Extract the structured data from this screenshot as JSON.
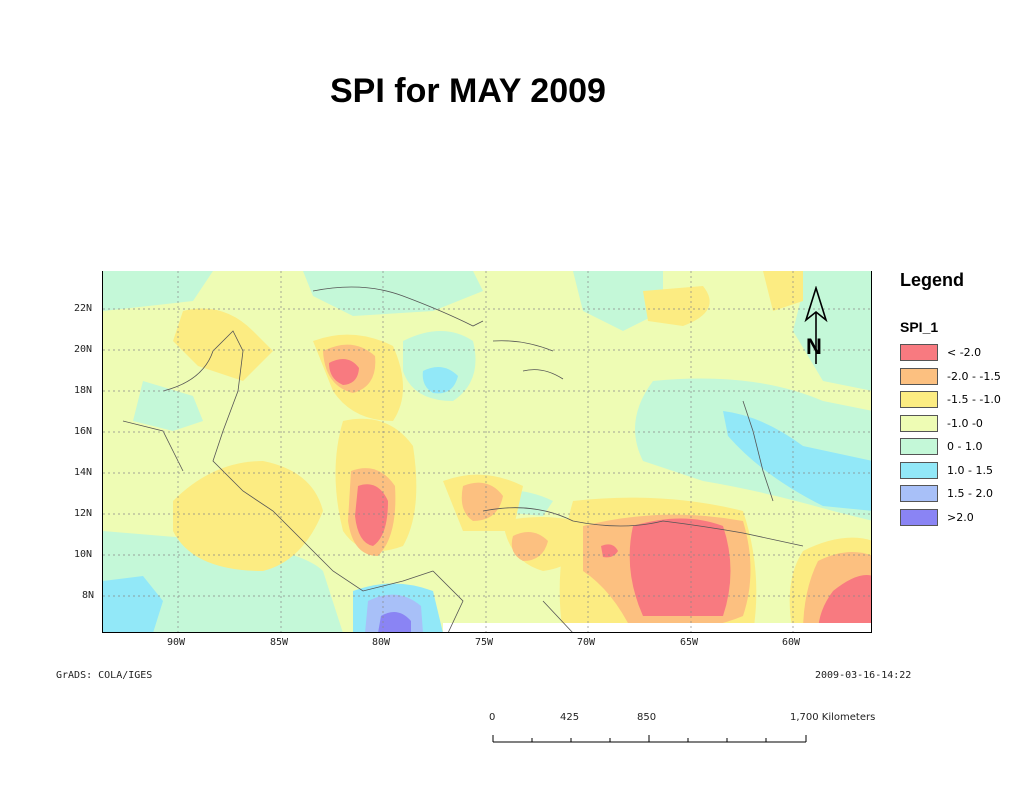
{
  "title": "SPI for MAY 2009",
  "map": {
    "lat_labels": [
      "22N",
      "20N",
      "18N",
      "16N",
      "14N",
      "12N",
      "10N",
      "8N"
    ],
    "lon_labels": [
      "90W",
      "85W",
      "80W",
      "75W",
      "70W",
      "65W",
      "60W"
    ],
    "credit": "GrADS: COLA/IGES",
    "timestamp": "2009-03-16-14:22",
    "north_arrow": "N"
  },
  "legend": {
    "title": "Legend",
    "field": "SPI_1",
    "items": [
      {
        "label": "< -2.0",
        "color": "#f87a80"
      },
      {
        "label": "-2.0 - -1.5",
        "color": "#fcc080"
      },
      {
        "label": "-1.5 -  -1.0",
        "color": "#fcec82"
      },
      {
        "label": "-1.0 -0",
        "color": "#eefcb4"
      },
      {
        "label": "0 - 1.0",
        "color": "#c4f8d8"
      },
      {
        "label": "1.0 - 1.5",
        "color": "#92e8f8"
      },
      {
        "label": "1.5 - 2.0",
        "color": "#a8c0f8"
      },
      {
        "label": ">2.0",
        "color": "#8a84f4"
      }
    ]
  },
  "scalebar": {
    "ticks": [
      "0",
      "425",
      "850",
      "1,700 Kilometers"
    ]
  }
}
